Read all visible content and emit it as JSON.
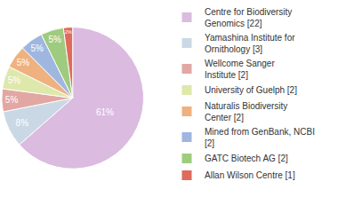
{
  "chart_data": {
    "type": "pie",
    "categories": [
      "Centre for Biodiversity Genomics [22]",
      "Yamashina Institute for Ornithology [3]",
      "Wellcome Sanger Institute [2]",
      "University of Guelph [2]",
      "Naturalis Biodiversity Center [2]",
      "Mined from GenBank, NCBI [2]",
      "GATC Biotech AG [2]",
      "Allan Wilson Centre [1]"
    ],
    "values": [
      61,
      8,
      5,
      5,
      5,
      5,
      5,
      2
    ],
    "value_labels": [
      "61%",
      "8%",
      "5%",
      "5%",
      "5%",
      "5%",
      "5%",
      "2%"
    ],
    "colors": [
      "#dbbbe0",
      "#cad8e6",
      "#e2a7a2",
      "#dfe8ab",
      "#efb17f",
      "#9fb6df",
      "#9fcb7f",
      "#de6b5c"
    ],
    "data_labels": true,
    "legend": "upper right"
  }
}
